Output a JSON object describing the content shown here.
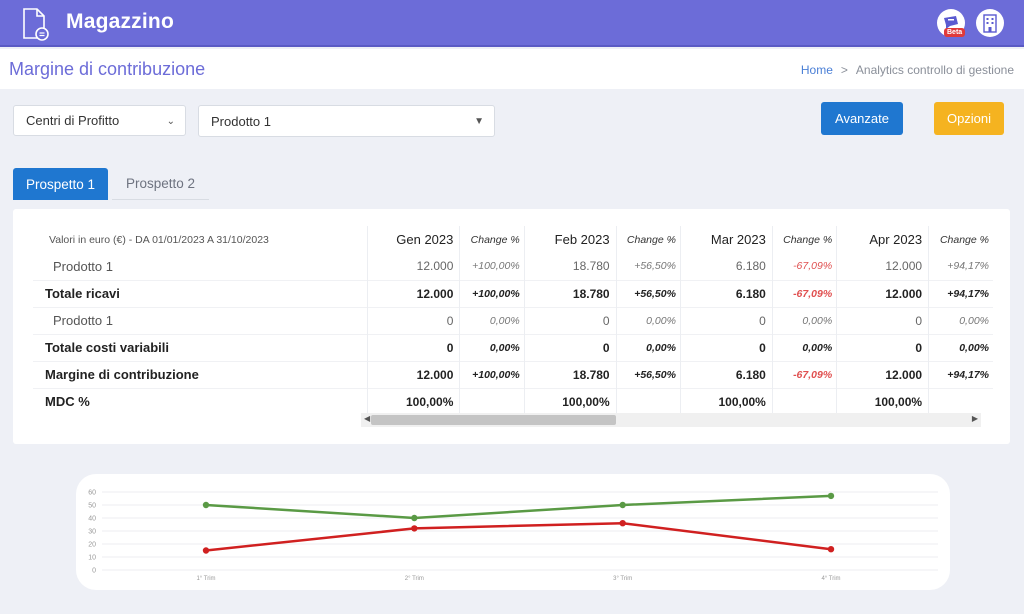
{
  "app": {
    "title": "Magazzino",
    "beta_badge": "Beta"
  },
  "header": {
    "page_title": "Margine di contribuzione",
    "breadcrumb": {
      "home": "Home",
      "separator": ">",
      "current": "Analytics controllo di gestione"
    }
  },
  "filters": {
    "group": {
      "value": "Centri di Profitto"
    },
    "product": {
      "value": "Prodotto 1"
    }
  },
  "buttons": {
    "advanced": "Avanzate",
    "options": "Opzioni"
  },
  "tabs": [
    {
      "label": "Prospetto 1",
      "active": true
    },
    {
      "label": "Prospetto 2",
      "active": false
    }
  ],
  "table": {
    "note": "Valori in euro (€) - DA 01/01/2023 A 31/10/2023",
    "change_label": "Change %",
    "months": [
      "Gen 2023",
      "Feb 2023",
      "Mar 2023",
      "Apr 2023"
    ],
    "rows": [
      {
        "label": "Prodotto 1",
        "kind": "sub",
        "cells": [
          [
            "12.000",
            "+100,00%"
          ],
          [
            "18.780",
            "+56,50%"
          ],
          [
            "6.180",
            "-67,09%"
          ],
          [
            "12.000",
            "+94,17%"
          ]
        ]
      },
      {
        "label": "Totale ricavi",
        "kind": "tot",
        "cells": [
          [
            "12.000",
            "+100,00%"
          ],
          [
            "18.780",
            "+56,50%"
          ],
          [
            "6.180",
            "-67,09%"
          ],
          [
            "12.000",
            "+94,17%"
          ]
        ]
      },
      {
        "label": "Prodotto 1",
        "kind": "sub",
        "cells": [
          [
            "0",
            "0,00%"
          ],
          [
            "0",
            "0,00%"
          ],
          [
            "0",
            "0,00%"
          ],
          [
            "0",
            "0,00%"
          ]
        ]
      },
      {
        "label": "Totale costi variabili",
        "kind": "tot",
        "cells": [
          [
            "0",
            "0,00%"
          ],
          [
            "0",
            "0,00%"
          ],
          [
            "0",
            "0,00%"
          ],
          [
            "0",
            "0,00%"
          ]
        ]
      },
      {
        "label": "Margine di contribuzione",
        "kind": "tot",
        "cells": [
          [
            "12.000",
            "+100,00%"
          ],
          [
            "18.780",
            "+56,50%"
          ],
          [
            "6.180",
            "-67,09%"
          ],
          [
            "12.000",
            "+94,17%"
          ]
        ]
      },
      {
        "label": "MDC %",
        "kind": "tot",
        "cells": [
          [
            "100,00%",
            ""
          ],
          [
            "100,00%",
            ""
          ],
          [
            "100,00%",
            ""
          ],
          [
            "100,00%",
            ""
          ]
        ]
      }
    ]
  },
  "colors": {
    "brand": "#6c6cd8",
    "primary": "#1f77d0",
    "warning": "#f5b320",
    "negative": "#e05050",
    "series_green": "#5a9a45",
    "series_red": "#d02020"
  },
  "chart_data": {
    "type": "line",
    "categories": [
      "1° Trim",
      "2° Trim",
      "3° Trim",
      "4° Trim"
    ],
    "yticks": [
      0,
      10,
      20,
      30,
      40,
      50,
      60
    ],
    "ylim": [
      0,
      60
    ],
    "grid": true,
    "series": [
      {
        "color": "#5a9a45",
        "values": [
          50,
          40,
          50,
          57
        ]
      },
      {
        "color": "#d02020",
        "values": [
          15,
          32,
          36,
          16
        ]
      }
    ]
  }
}
